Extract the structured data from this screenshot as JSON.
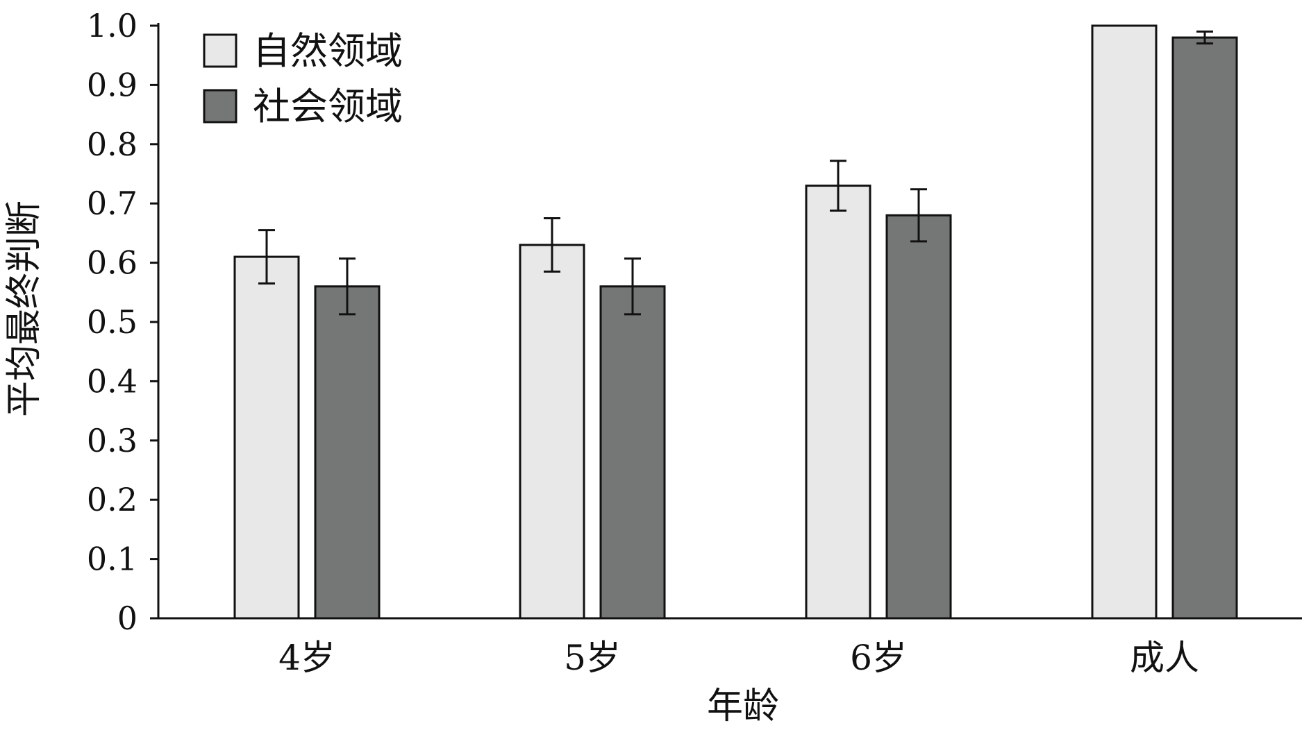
{
  "chart_data": {
    "type": "bar",
    "title": "",
    "xlabel": "年龄",
    "ylabel": "平均最终判断",
    "ylim": [
      0,
      1.0
    ],
    "yticks": [
      "0",
      "0.1",
      "0.2",
      "0.3",
      "0.4",
      "0.5",
      "0.6",
      "0.7",
      "0.8",
      "0.9",
      "1.0"
    ],
    "categories": [
      "4岁",
      "5岁",
      "6岁",
      "成人"
    ],
    "series": [
      {
        "name": "自然领域",
        "color": "#e8e8e8",
        "values": [
          0.61,
          0.63,
          0.73,
          1.0
        ],
        "error": [
          0.045,
          0.045,
          0.042,
          0.0
        ]
      },
      {
        "name": "社会领域",
        "color": "#757776",
        "values": [
          0.56,
          0.56,
          0.68,
          0.98
        ],
        "error": [
          0.047,
          0.047,
          0.044,
          0.01
        ]
      }
    ],
    "grid": false,
    "legend": "top-left"
  }
}
